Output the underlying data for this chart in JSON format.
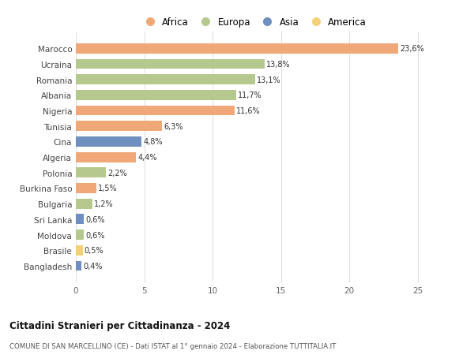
{
  "categories": [
    "Bangladesh",
    "Brasile",
    "Moldova",
    "Sri Lanka",
    "Bulgaria",
    "Burkina Faso",
    "Polonia",
    "Algeria",
    "Cina",
    "Tunisia",
    "Nigeria",
    "Albania",
    "Romania",
    "Ucraina",
    "Marocco"
  ],
  "values": [
    0.4,
    0.5,
    0.6,
    0.6,
    1.2,
    1.5,
    2.2,
    4.4,
    4.8,
    6.3,
    11.6,
    11.7,
    13.1,
    13.8,
    23.6
  ],
  "labels": [
    "0,4%",
    "0,5%",
    "0,6%",
    "0,6%",
    "1,2%",
    "1,5%",
    "2,2%",
    "4,4%",
    "4,8%",
    "6,3%",
    "11,6%",
    "11,7%",
    "13,1%",
    "13,8%",
    "23,6%"
  ],
  "continents": [
    "Asia",
    "America",
    "Europa",
    "Asia",
    "Europa",
    "Africa",
    "Europa",
    "Africa",
    "Asia",
    "Africa",
    "Africa",
    "Europa",
    "Europa",
    "Europa",
    "Africa"
  ],
  "colors": {
    "Africa": "#F0A878",
    "Europa": "#B5C98E",
    "Asia": "#6E8FC0",
    "America": "#F5D07A"
  },
  "legend_order": [
    "Africa",
    "Europa",
    "Asia",
    "America"
  ],
  "title": "Cittadini Stranieri per Cittadinanza - 2024",
  "subtitle": "COMUNE DI SAN MARCELLINO (CE) - Dati ISTAT al 1° gennaio 2024 - Elaborazione TUTTITALIA.IT",
  "xlim": [
    0,
    26
  ],
  "xticks": [
    0,
    5,
    10,
    15,
    20,
    25
  ],
  "background_color": "#ffffff",
  "grid_color": "#e0e0e0",
  "bar_height": 0.65
}
